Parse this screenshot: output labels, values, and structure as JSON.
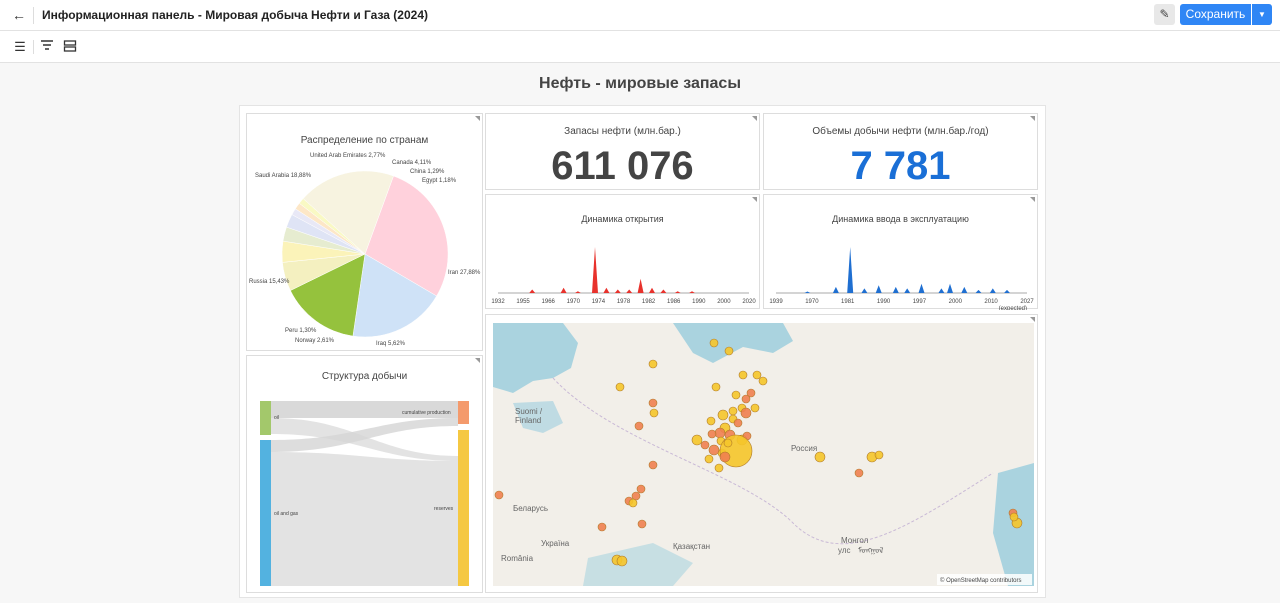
{
  "header": {
    "back_icon": "arrow-left-icon",
    "title": "Информационная панель - Мировая добыча Нефти и Газа (2024)",
    "edit_icon": "pencil-icon",
    "save_label": "Сохранить",
    "save_dropdown_icon": "caret-down-icon"
  },
  "toolbar": {
    "icons": [
      "hamburger-menu-icon",
      "filter-icon",
      "layout-rows-icon"
    ]
  },
  "page": {
    "heading": "Нефть - мировые запасы"
  },
  "pie": {
    "title": "Распределение по странам",
    "labels": {
      "uae": "United Arab Emirates 2,77%",
      "canada": "Canada 4,11%",
      "china": "China 1,29%",
      "egypt": "Egypt 1,18%",
      "saudi": "Saudi Arabia 18,88%",
      "russia": "Russia 15,43%",
      "iran": "Iran 27,88%",
      "peru": "Peru 1,30%",
      "norway": "Norway 2,61%",
      "iraq": "Iraq 5,62%"
    }
  },
  "kpi_reserves": {
    "title": "Запасы нефти (млн.бар.)",
    "value": "611 076",
    "color": "#444444"
  },
  "kpi_production": {
    "title": "Объемы добычи нефти (млн.бар./год)",
    "value": "7 781",
    "color": "#1a6fd6"
  },
  "discovery": {
    "title": "Динамика открытия",
    "ticks": [
      "1932",
      "1955",
      "1966",
      "1970",
      "1974",
      "1978",
      "1982",
      "1986",
      "1990",
      "2000",
      "2020"
    ],
    "color": "#e8322c"
  },
  "commissioning": {
    "title": "Динамика ввода в эксплуатацию",
    "ticks": [
      "1939",
      "1970",
      "1981",
      "1990",
      "1997",
      "2000",
      "2010",
      "2027"
    ],
    "tick_note": "(expected)",
    "color": "#1f6fd1"
  },
  "sankey": {
    "title": "Структура добычи",
    "nodes": {
      "oil": "oil",
      "oil_gas": "oil and gas",
      "cumulative": "cumulative production",
      "reserves": "reserves"
    }
  },
  "map": {
    "labels": {
      "finland": "Suomi /\nFinland",
      "russia": "Россия",
      "belarus": "Беларусь",
      "ukraine": "Україна",
      "romania": "România",
      "kazakhstan": "Қазақстан",
      "mongolia": "Монгол\nулс",
      "mongolia_script": "ᠮᠣᠩᠭᠣᠯ"
    },
    "attribution": "© OpenStreetMap contributors"
  },
  "chart_data": [
    {
      "type": "pie",
      "title": "Распределение по странам",
      "categories": [
        "Iran",
        "Saudi Arabia",
        "Russia",
        "Iraq",
        "Canada",
        "United Arab Emirates",
        "Norway",
        "Peru",
        "China",
        "Egypt"
      ],
      "values": [
        27.88,
        18.88,
        15.43,
        5.62,
        4.11,
        2.77,
        2.61,
        1.3,
        1.29,
        1.18
      ],
      "unit": "%"
    },
    {
      "type": "area",
      "title": "Динамика открытия",
      "x": [
        1932,
        1944,
        1955,
        1960,
        1966,
        1970,
        1974,
        1978,
        1982,
        1986,
        1990,
        1995,
        2000,
        2010,
        2020
      ],
      "values": [
        0,
        2,
        3,
        1,
        26,
        3,
        2,
        2,
        8,
        3,
        2,
        1,
        1,
        0,
        0
      ]
    },
    {
      "type": "area",
      "title": "Динамика ввода в эксплуатацию",
      "x": [
        1939,
        1950,
        1960,
        1965,
        1970,
        1975,
        1981,
        1985,
        1990,
        1997,
        2000,
        2005,
        2010,
        2015,
        2020,
        2027
      ],
      "values": [
        0,
        1,
        4,
        30,
        3,
        5,
        4,
        3,
        6,
        3,
        6,
        4,
        2,
        3,
        2,
        0
      ]
    },
    {
      "type": "sankey",
      "title": "Структура добычи",
      "links": [
        {
          "source": "oil",
          "target": "cumulative production",
          "value": 18
        },
        {
          "source": "oil",
          "target": "reserves",
          "value": 2
        },
        {
          "source": "oil and gas",
          "target": "cumulative production",
          "value": 12
        },
        {
          "source": "oil and gas",
          "target": "reserves",
          "value": 130
        }
      ]
    }
  ],
  "colors": {
    "save_blue": "#2f86f5",
    "marker_orange": "#f08050",
    "marker_yellow": "#f5c52a"
  }
}
